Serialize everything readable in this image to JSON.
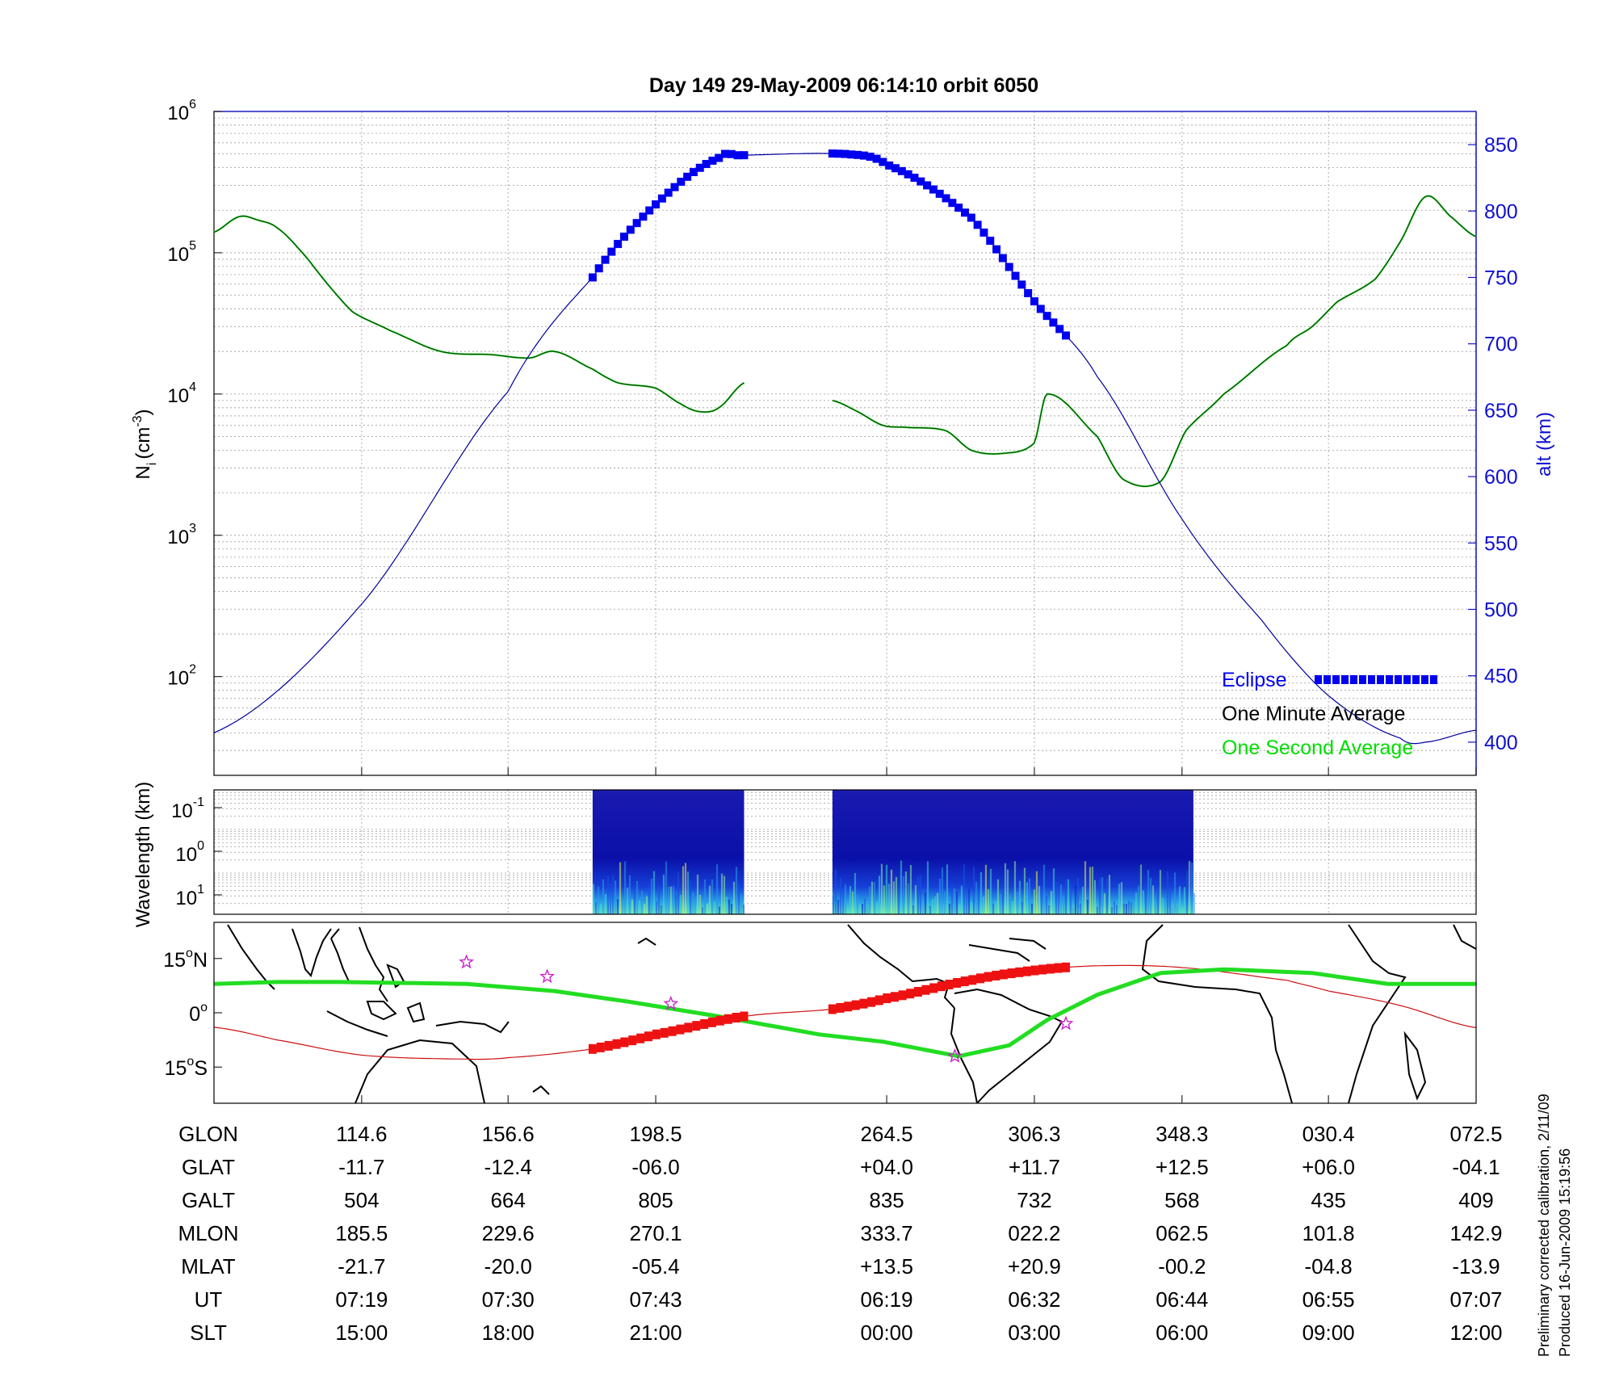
{
  "chart_data": [
    {
      "type": "line",
      "title": "Day 149  29-May-2009 06:14:10   orbit 6050",
      "ylabel": "N",
      "ylabel_sub": "i",
      "ylabel_unit": "(cm",
      "ylabel_unit_sup": "-3",
      "ylabel_unit_end": ")",
      "y_scale": "log",
      "ylim": [
        20,
        1000000
      ],
      "y_ticks": [
        {
          "base": "10",
          "exp": "2",
          "value": 100
        },
        {
          "base": "10",
          "exp": "3",
          "value": 1000
        },
        {
          "base": "10",
          "exp": "4",
          "value": 10000
        },
        {
          "base": "10",
          "exp": "5",
          "value": 100000
        },
        {
          "base": "10",
          "exp": "6",
          "value": 1000000
        }
      ],
      "y2label": "alt (km)",
      "y2lim": [
        375,
        875
      ],
      "y2_ticks": [
        "400",
        "450",
        "500",
        "550",
        "600",
        "650",
        "700",
        "750",
        "800",
        "850"
      ],
      "x_range": [
        0,
        1
      ],
      "x_tick_positions": [
        0.117,
        0.233,
        0.35,
        0.533,
        0.65,
        0.767,
        0.883,
        1.0
      ],
      "grid": true,
      "legend_position": "bottom-right",
      "legend": [
        {
          "label": "Eclipse",
          "color": "#0000ee"
        },
        {
          "label": "One Minute Average",
          "color": "#000000"
        },
        {
          "label": "One Second Average",
          "color": "#00dd00"
        }
      ],
      "colors": {
        "altitude": "#00009a",
        "eclipse": "#0000ee",
        "minute": "#1a5c1a",
        "second": "#22dd22"
      },
      "altitude": {
        "x": [
          0,
          0.117,
          0.233,
          0.3,
          0.35,
          0.4,
          0.417,
          0.5,
          0.533,
          0.6,
          0.65,
          0.7,
          0.767,
          0.83,
          0.883,
          0.94,
          0.96,
          1.0
        ],
        "y": [
          407,
          504,
          664,
          750,
          805,
          840,
          842,
          843,
          835,
          795,
          732,
          675,
          568,
          492,
          435,
          403,
          400,
          409
        ]
      },
      "eclipse_segments": [
        [
          0.3,
          0.42
        ],
        [
          0.49,
          0.675
        ]
      ],
      "density_segments": [
        {
          "x": [
            0,
            0.02,
            0.035,
            0.05,
            0.07,
            0.09,
            0.11,
            0.14,
            0.18,
            0.22,
            0.25,
            0.27,
            0.3,
            0.32,
            0.35,
            0.37,
            0.385,
            0.4,
            0.42
          ],
          "y": [
            140000,
            180000,
            170000,
            150000,
            100000,
            60000,
            38000,
            28000,
            20000,
            19000,
            18000,
            20000,
            15000,
            12000,
            11000,
            8500,
            7500,
            8000,
            12000
          ]
        },
        {
          "x": [
            0.49,
            0.51,
            0.53,
            0.55,
            0.58,
            0.6,
            0.625,
            0.65,
            0.66,
            0.7,
            0.72,
            0.75,
            0.77,
            0.8,
            0.85,
            0.87,
            0.89,
            0.92,
            0.94,
            0.96,
            0.98,
            1.0
          ],
          "y": [
            9000,
            7500,
            6000,
            5800,
            5500,
            4000,
            3800,
            4500,
            10000,
            5000,
            2500,
            2400,
            5500,
            10000,
            22000,
            30000,
            45000,
            65000,
            120000,
            250000,
            180000,
            130000
          ]
        }
      ]
    },
    {
      "type": "heatmap",
      "ylabel": "Wavelength (km)",
      "y_ticks": [
        {
          "base": "10",
          "exp": "-1"
        },
        {
          "base": "10",
          "exp": "0"
        },
        {
          "base": "10",
          "exp": "1"
        }
      ],
      "segments": [
        [
          0.3,
          0.42
        ],
        [
          0.49,
          0.776
        ]
      ],
      "colormap": [
        "#00007f",
        "#0000ff",
        "#007fff",
        "#00ffff",
        "#7fff7f",
        "#ffff00"
      ]
    },
    {
      "type": "line",
      "ylabel": "",
      "lat_ticks": [
        {
          "deg": "15",
          "hemi": "N",
          "value": 15
        },
        {
          "deg": "0",
          "hemi": "",
          "value": 0
        },
        {
          "deg": "15",
          "hemi": "S",
          "value": -15
        }
      ],
      "ylim": [
        -25,
        25
      ],
      "colors": {
        "orbit": "#cc1111",
        "eclipse": "#ee1111",
        "equator": "#22dd22",
        "stars": "#cc22cc"
      },
      "orbit_track": {
        "x": [
          0,
          0.05,
          0.117,
          0.2,
          0.233,
          0.3,
          0.35,
          0.42,
          0.49,
          0.533,
          0.6,
          0.65,
          0.7,
          0.767,
          0.85,
          0.883,
          0.94,
          1.0
        ],
        "y": [
          -4,
          -7.5,
          -11.7,
          -12.8,
          -12.4,
          -10,
          -6,
          -1,
          1,
          4,
          9,
          11.7,
          13,
          12.5,
          9,
          6,
          2,
          -4.1
        ]
      },
      "eclipse_segments": [
        [
          0.3,
          0.42
        ],
        [
          0.49,
          0.675
        ]
      ],
      "magnetic_equator": {
        "x": [
          0,
          0.05,
          0.1,
          0.2,
          0.27,
          0.33,
          0.4,
          0.48,
          0.53,
          0.59,
          0.63,
          0.66,
          0.7,
          0.75,
          0.8,
          0.87,
          0.93,
          1.0
        ],
        "y": [
          8,
          8.5,
          8.5,
          8,
          6,
          3,
          -1,
          -6,
          -8,
          -12,
          -9,
          -2,
          5,
          11,
          12,
          11,
          8,
          8
        ]
      },
      "stars": [
        {
          "x": 0.2,
          "y": 14
        },
        {
          "x": 0.264,
          "y": 10
        },
        {
          "x": 0.362,
          "y": 2.5
        },
        {
          "x": 0.587,
          "y": -12
        },
        {
          "x": 0.675,
          "y": -3
        }
      ]
    }
  ],
  "ephemeris": {
    "rows": [
      {
        "label": "GLON",
        "values": [
          "114.6",
          "156.6",
          "198.5",
          "264.5",
          "306.3",
          "348.3",
          "030.4",
          "072.5"
        ]
      },
      {
        "label": "GLAT",
        "values": [
          "-11.7",
          "-12.4",
          "-06.0",
          "+04.0",
          "+11.7",
          "+12.5",
          "+06.0",
          "-04.1"
        ]
      },
      {
        "label": "GALT",
        "values": [
          "504",
          "664",
          "805",
          "835",
          "732",
          "568",
          "435",
          "409"
        ]
      },
      {
        "label": "MLON",
        "values": [
          "185.5",
          "229.6",
          "270.1",
          "333.7",
          "022.2",
          "062.5",
          "101.8",
          "142.9"
        ]
      },
      {
        "label": "MLAT",
        "values": [
          "-21.7",
          "-20.0",
          "-05.4",
          "+13.5",
          "+20.9",
          "-00.2",
          "-04.8",
          "-13.9"
        ]
      },
      {
        "label": "UT",
        "values": [
          "07:19",
          "07:30",
          "07:43",
          "06:19",
          "06:32",
          "06:44",
          "06:55",
          "07:07"
        ]
      },
      {
        "label": "SLT",
        "values": [
          "15:00",
          "18:00",
          "21:00",
          "00:00",
          "03:00",
          "06:00",
          "09:00",
          "12:00"
        ]
      }
    ]
  },
  "footnote": {
    "line1": "Preliminary corrected calibration, 2/11/09",
    "line2": "Produced 16-Jun-2009 15:19:56"
  }
}
